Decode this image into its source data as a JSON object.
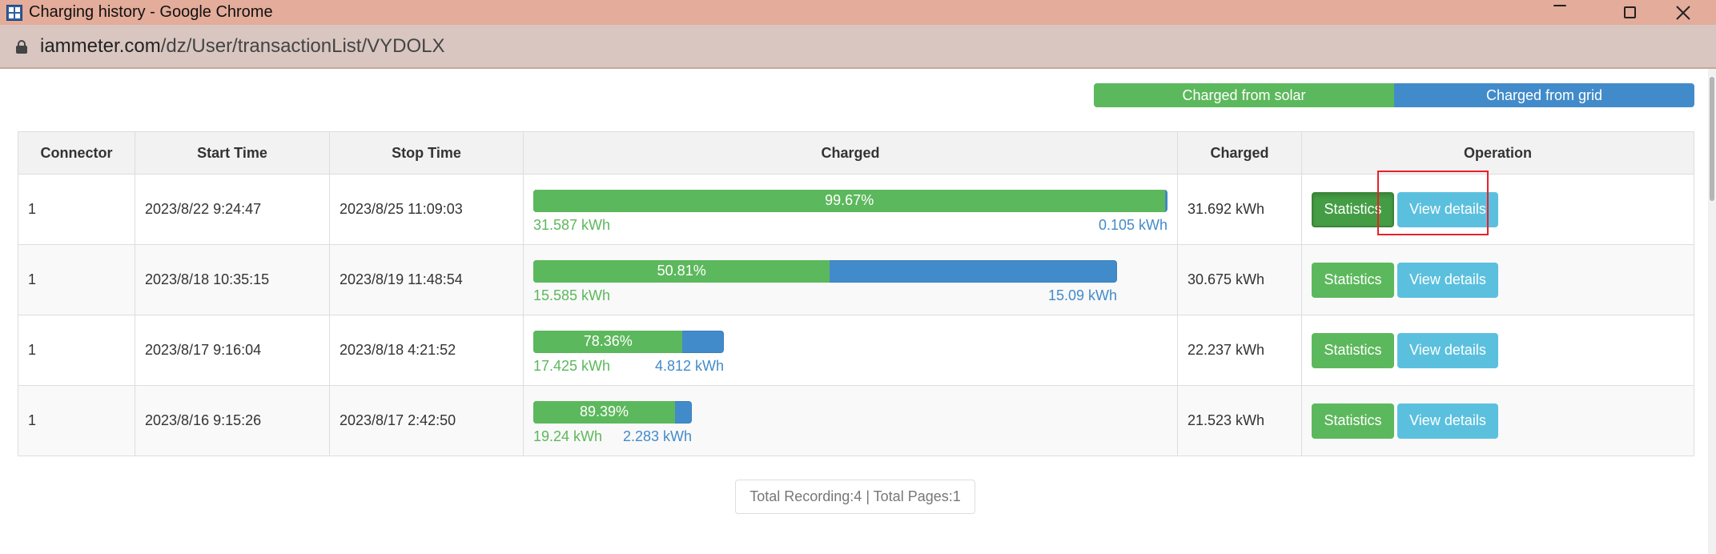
{
  "window": {
    "title": "Charging history - Google Chrome",
    "url_host": "iammeter.com",
    "url_path": "/dz/User/transactionList/VYDOLX"
  },
  "legend": {
    "solar_label": "Charged from solar",
    "grid_label": "Charged from grid",
    "solar_color": "#5cb85c",
    "grid_color": "#428bca"
  },
  "table": {
    "headers": {
      "connector": "Connector",
      "start_time": "Start Time",
      "stop_time": "Stop Time",
      "charged_bar": "Charged",
      "charged_kwh": "Charged",
      "operation": "Operation"
    },
    "rows": [
      {
        "connector": "1",
        "start_time": "2023/8/22 9:24:47",
        "stop_time": "2023/8/25 11:09:03",
        "solar_percent_label": "99.67%",
        "solar_fraction": 0.9967,
        "solar_kwh": "31.587 kWh",
        "grid_kwh": "0.105 kWh",
        "total_kwh": "31.692 kWh",
        "bar_scale": 1.0,
        "stat_label": "Statistics",
        "view_label": "View details"
      },
      {
        "connector": "1",
        "start_time": "2023/8/18 10:35:15",
        "stop_time": "2023/8/19 11:48:54",
        "solar_percent_label": "50.81%",
        "solar_fraction": 0.5081,
        "solar_kwh": "15.585 kWh",
        "grid_kwh": "15.09 kWh",
        "total_kwh": "30.675 kWh",
        "bar_scale": 0.92,
        "stat_label": "Statistics",
        "view_label": "View details"
      },
      {
        "connector": "1",
        "start_time": "2023/8/17 9:16:04",
        "stop_time": "2023/8/18 4:21:52",
        "solar_percent_label": "78.36%",
        "solar_fraction": 0.7836,
        "solar_kwh": "17.425 kWh",
        "grid_kwh": "4.812 kWh",
        "total_kwh": "22.237 kWh",
        "bar_scale": 0.3,
        "stat_label": "Statistics",
        "view_label": "View details"
      },
      {
        "connector": "1",
        "start_time": "2023/8/16 9:15:26",
        "stop_time": "2023/8/17 2:42:50",
        "solar_percent_label": "89.39%",
        "solar_fraction": 0.8939,
        "solar_kwh": "19.24 kWh",
        "grid_kwh": "2.283 kWh",
        "total_kwh": "21.523 kWh",
        "bar_scale": 0.25,
        "stat_label": "Statistics",
        "view_label": "View details"
      }
    ]
  },
  "pager": {
    "text": "Total Recording:4 | Total Pages:1"
  }
}
